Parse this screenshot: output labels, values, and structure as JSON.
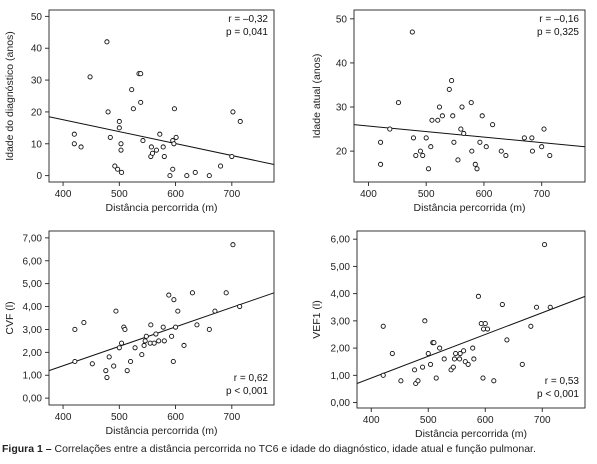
{
  "figure": {
    "caption_label": "Figura 1 –",
    "caption_text": "Correlações entre a distância percorrida no TC6 e idade do diagnóstico, idade atual e função pulmonar."
  },
  "chart_data": [
    {
      "type": "scatter",
      "xlabel": "Distância percorrida (m)",
      "ylabel": "Idade do diagnóstico (anos)",
      "xlim": [
        375,
        775
      ],
      "ylim": [
        -2,
        52
      ],
      "xticks": [
        "400",
        "500",
        "600",
        "700"
      ],
      "yticks": [
        "0",
        "10",
        "20",
        "30",
        "40",
        "50"
      ],
      "stats": [
        "r = –0,32",
        "p = 0,041"
      ],
      "trendline": [
        [
          375,
          18.5
        ],
        [
          775,
          3.5
        ]
      ],
      "points": [
        [
          420,
          13
        ],
        [
          420,
          10
        ],
        [
          432,
          9
        ],
        [
          448,
          31
        ],
        [
          478,
          42
        ],
        [
          480,
          20
        ],
        [
          484,
          12
        ],
        [
          492,
          3
        ],
        [
          497,
          2
        ],
        [
          500,
          17
        ],
        [
          500,
          15
        ],
        [
          503,
          10
        ],
        [
          503,
          8
        ],
        [
          504,
          1
        ],
        [
          522,
          27
        ],
        [
          525,
          21
        ],
        [
          535,
          32
        ],
        [
          538,
          32
        ],
        [
          538,
          23
        ],
        [
          542,
          11
        ],
        [
          556,
          6
        ],
        [
          557,
          9
        ],
        [
          559,
          7
        ],
        [
          566,
          8
        ],
        [
          572,
          13
        ],
        [
          578,
          9
        ],
        [
          580,
          6
        ],
        [
          590,
          0
        ],
        [
          595,
          11
        ],
        [
          597,
          10
        ],
        [
          595,
          2
        ],
        [
          601,
          12
        ],
        [
          598,
          21
        ],
        [
          620,
          0
        ],
        [
          635,
          1
        ],
        [
          660,
          0
        ],
        [
          680,
          3
        ],
        [
          700,
          6
        ],
        [
          702,
          20
        ],
        [
          715,
          17
        ]
      ]
    },
    {
      "type": "scatter",
      "xlabel": "Distância percorrida (m)",
      "ylabel": "Idade atual (anos)",
      "xlim": [
        375,
        775
      ],
      "ylim": [
        13,
        52
      ],
      "xticks": [
        "400",
        "500",
        "600",
        "700"
      ],
      "yticks": [
        "20",
        "30",
        "40",
        "50"
      ],
      "stats": [
        "r = –0,16",
        "p = 0,325"
      ],
      "trendline": [
        [
          375,
          26.0
        ],
        [
          775,
          21.0
        ]
      ],
      "points": [
        [
          421,
          17
        ],
        [
          421,
          22
        ],
        [
          437,
          25
        ],
        [
          452,
          31
        ],
        [
          476,
          47
        ],
        [
          478,
          23
        ],
        [
          482,
          19
        ],
        [
          490,
          20
        ],
        [
          494,
          19
        ],
        [
          500,
          23
        ],
        [
          504,
          16
        ],
        [
          508,
          21
        ],
        [
          510,
          27
        ],
        [
          520,
          27
        ],
        [
          523,
          30
        ],
        [
          528,
          28
        ],
        [
          540,
          34
        ],
        [
          544,
          36
        ],
        [
          546,
          28
        ],
        [
          548,
          22
        ],
        [
          555,
          18
        ],
        [
          560,
          25
        ],
        [
          562,
          30
        ],
        [
          565,
          24
        ],
        [
          578,
          31
        ],
        [
          579,
          20
        ],
        [
          585,
          17
        ],
        [
          588,
          16
        ],
        [
          593,
          22
        ],
        [
          597,
          28
        ],
        [
          604,
          21
        ],
        [
          615,
          26
        ],
        [
          630,
          20
        ],
        [
          638,
          19
        ],
        [
          670,
          23
        ],
        [
          683,
          23
        ],
        [
          684,
          20
        ],
        [
          704,
          25
        ],
        [
          714,
          19
        ],
        [
          700,
          21
        ]
      ]
    },
    {
      "type": "scatter",
      "xlabel": "Distância percorrida (m)",
      "ylabel": "CVF (l)",
      "xlim": [
        375,
        775
      ],
      "ylim": [
        -0.3,
        7.3
      ],
      "xticks": [
        "400",
        "500",
        "600",
        "700"
      ],
      "yticks": [
        "0,00",
        "1,00",
        "2,00",
        "3,00",
        "4,00",
        "5,00",
        "6,00",
        "7,00"
      ],
      "stats": [
        "r = 0,62",
        "p < 0,001"
      ],
      "trendline": [
        [
          375,
          1.2
        ],
        [
          775,
          4.6
        ]
      ],
      "points": [
        [
          421,
          3.0
        ],
        [
          421,
          1.6
        ],
        [
          437,
          3.3
        ],
        [
          452,
          1.5
        ],
        [
          476,
          1.2
        ],
        [
          478,
          0.9
        ],
        [
          482,
          1.8
        ],
        [
          490,
          1.4
        ],
        [
          494,
          3.8
        ],
        [
          500,
          2.2
        ],
        [
          504,
          2.4
        ],
        [
          508,
          3.1
        ],
        [
          510,
          3.0
        ],
        [
          514,
          1.2
        ],
        [
          520,
          1.6
        ],
        [
          528,
          2.2
        ],
        [
          540,
          1.9
        ],
        [
          544,
          2.3
        ],
        [
          546,
          2.5
        ],
        [
          548,
          2.7
        ],
        [
          555,
          2.4
        ],
        [
          556,
          3.2
        ],
        [
          562,
          2.4
        ],
        [
          565,
          2.8
        ],
        [
          570,
          2.5
        ],
        [
          578,
          3.1
        ],
        [
          580,
          2.5
        ],
        [
          588,
          4.5
        ],
        [
          593,
          2.7
        ],
        [
          596,
          1.6
        ],
        [
          597,
          4.3
        ],
        [
          600,
          3.1
        ],
        [
          604,
          3.8
        ],
        [
          615,
          2.3
        ],
        [
          630,
          4.6
        ],
        [
          638,
          3.2
        ],
        [
          660,
          3.0
        ],
        [
          670,
          3.8
        ],
        [
          690,
          4.6
        ],
        [
          702,
          6.7
        ],
        [
          714,
          4.0
        ]
      ]
    },
    {
      "type": "scatter",
      "xlabel": "Distância percorrida (m)",
      "ylabel": "VEF1 (l)",
      "xlim": [
        375,
        775
      ],
      "ylim": [
        -0.2,
        6.3
      ],
      "xticks": [
        "400",
        "500",
        "600",
        "700"
      ],
      "yticks": [
        "0,00",
        "1,00",
        "2,00",
        "3,00",
        "4,00",
        "5,00",
        "6,00"
      ],
      "stats": [
        "r = 0,53",
        "p < 0,001"
      ],
      "trendline": [
        [
          375,
          0.7
        ],
        [
          775,
          3.9
        ]
      ],
      "points": [
        [
          421,
          2.8
        ],
        [
          421,
          1.0
        ],
        [
          437,
          1.8
        ],
        [
          452,
          0.8
        ],
        [
          476,
          1.2
        ],
        [
          478,
          0.7
        ],
        [
          482,
          0.8
        ],
        [
          490,
          1.3
        ],
        [
          494,
          3.0
        ],
        [
          500,
          1.8
        ],
        [
          504,
          1.4
        ],
        [
          508,
          2.2
        ],
        [
          510,
          2.2
        ],
        [
          514,
          0.9
        ],
        [
          520,
          2.0
        ],
        [
          528,
          1.6
        ],
        [
          540,
          1.2
        ],
        [
          544,
          1.3
        ],
        [
          546,
          1.6
        ],
        [
          548,
          1.8
        ],
        [
          555,
          1.6
        ],
        [
          556,
          1.8
        ],
        [
          562,
          1.9
        ],
        [
          565,
          1.5
        ],
        [
          570,
          1.4
        ],
        [
          578,
          2.0
        ],
        [
          580,
          1.6
        ],
        [
          588,
          3.9
        ],
        [
          593,
          2.9
        ],
        [
          596,
          0.9
        ],
        [
          597,
          2.7
        ],
        [
          600,
          2.9
        ],
        [
          604,
          2.7
        ],
        [
          615,
          0.8
        ],
        [
          630,
          3.6
        ],
        [
          638,
          2.3
        ],
        [
          665,
          1.4
        ],
        [
          680,
          2.8
        ],
        [
          690,
          3.5
        ],
        [
          704,
          5.8
        ],
        [
          714,
          3.5
        ]
      ]
    }
  ]
}
